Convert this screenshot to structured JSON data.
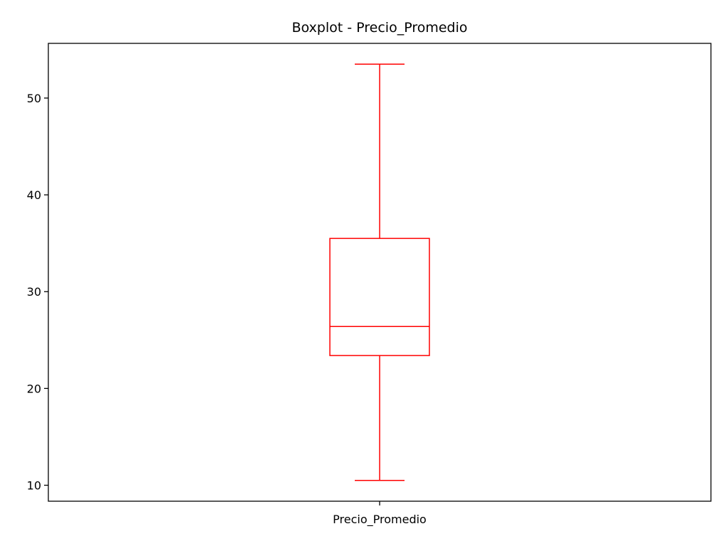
{
  "chart_data": {
    "type": "boxplot",
    "title": "Boxplot - Precio_Promedio",
    "xlabel": "",
    "ylabel": "",
    "categories": [
      "Precio_Promedio"
    ],
    "boxes": [
      {
        "category": "Precio_Promedio",
        "whisker_low": 10.5,
        "q1": 23.4,
        "median": 26.4,
        "q3": 35.5,
        "whisker_high": 53.5
      }
    ],
    "y_ticks": [
      10,
      20,
      30,
      40,
      50
    ],
    "ylim": [
      8.35,
      55.65
    ],
    "grid": false,
    "color": "#ff0000"
  }
}
